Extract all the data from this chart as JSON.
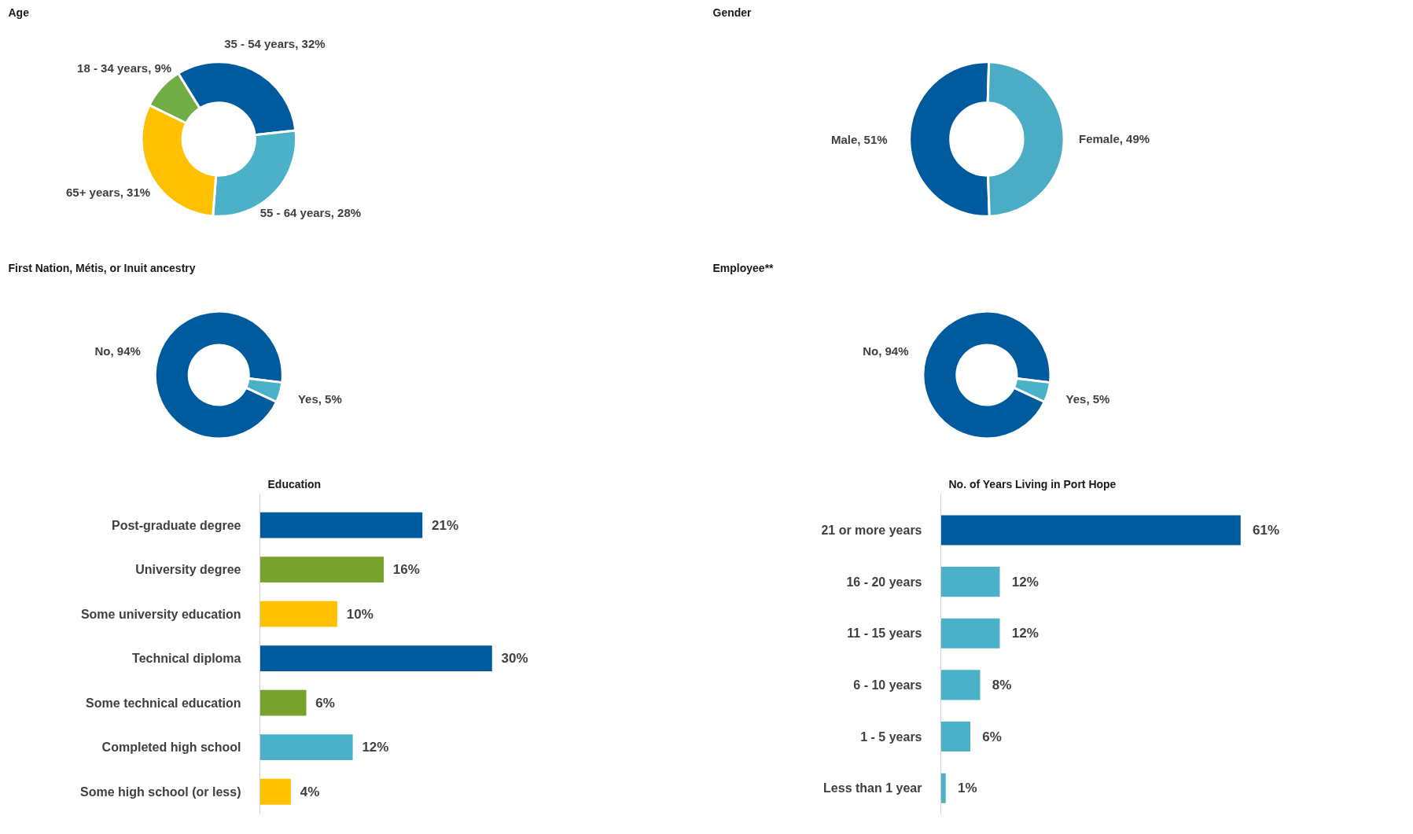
{
  "chart_data": [
    {
      "type": "donut",
      "title": "Age",
      "categories": [
        "18 - 34 years",
        "35 - 54 years",
        "55 - 64 years",
        "65+ years"
      ],
      "values": [
        9,
        32,
        28,
        31
      ],
      "value_labels": [
        "9%",
        "32%",
        "28%",
        "31%"
      ],
      "colors": [
        "#70ad47",
        "#005a9e",
        "#4bb1c8",
        "#ffc000"
      ]
    },
    {
      "type": "donut",
      "title": "Gender",
      "categories": [
        "Male",
        "Female"
      ],
      "values": [
        51,
        49
      ],
      "value_labels": [
        "51%",
        "49%"
      ],
      "colors": [
        "#005a9e",
        "#4bacc6"
      ]
    },
    {
      "type": "donut",
      "title": "First Nation, Métis, or Inuit ancestry",
      "categories": [
        "No",
        "Yes"
      ],
      "values": [
        94,
        5
      ],
      "value_labels": [
        "94%",
        "5%"
      ],
      "colors": [
        "#005a9e",
        "#4bb1c8"
      ]
    },
    {
      "type": "donut",
      "title": "Employee**",
      "categories": [
        "No",
        "Yes"
      ],
      "values": [
        94,
        5
      ],
      "value_labels": [
        "94%",
        "5%"
      ],
      "colors": [
        "#005a9e",
        "#4bb1c8"
      ]
    },
    {
      "type": "bar",
      "orientation": "horizontal",
      "title": "Education",
      "categories": [
        "Post-graduate degree",
        "University degree",
        "Some university education",
        "Technical diploma",
        "Some technical education",
        "Completed high school",
        "Some high school (or less)"
      ],
      "values": [
        21,
        16,
        10,
        30,
        6,
        12,
        4
      ],
      "value_labels": [
        "21%",
        "16%",
        "10%",
        "30%",
        "6%",
        "12%",
        "4%"
      ],
      "colors": [
        "#005a9e",
        "#77a22d",
        "#ffc000",
        "#005a9e",
        "#77a22d",
        "#4bb1c8",
        "#ffc000"
      ]
    },
    {
      "type": "bar",
      "orientation": "horizontal",
      "title": "No. of Years Living in Port Hope",
      "categories": [
        "21 or more years",
        "16 - 20 years",
        "11 - 15 years",
        "6 - 10 years",
        "1 - 5 years",
        "Less than 1 year"
      ],
      "values": [
        61,
        12,
        12,
        8,
        6,
        1
      ],
      "value_labels": [
        "61%",
        "12%",
        "12%",
        "8%",
        "6%",
        "1%"
      ],
      "colors": [
        "#005a9e",
        "#4bb1c8",
        "#4bb1c8",
        "#4bb1c8",
        "#4bb1c8",
        "#4bb1c8"
      ]
    }
  ]
}
